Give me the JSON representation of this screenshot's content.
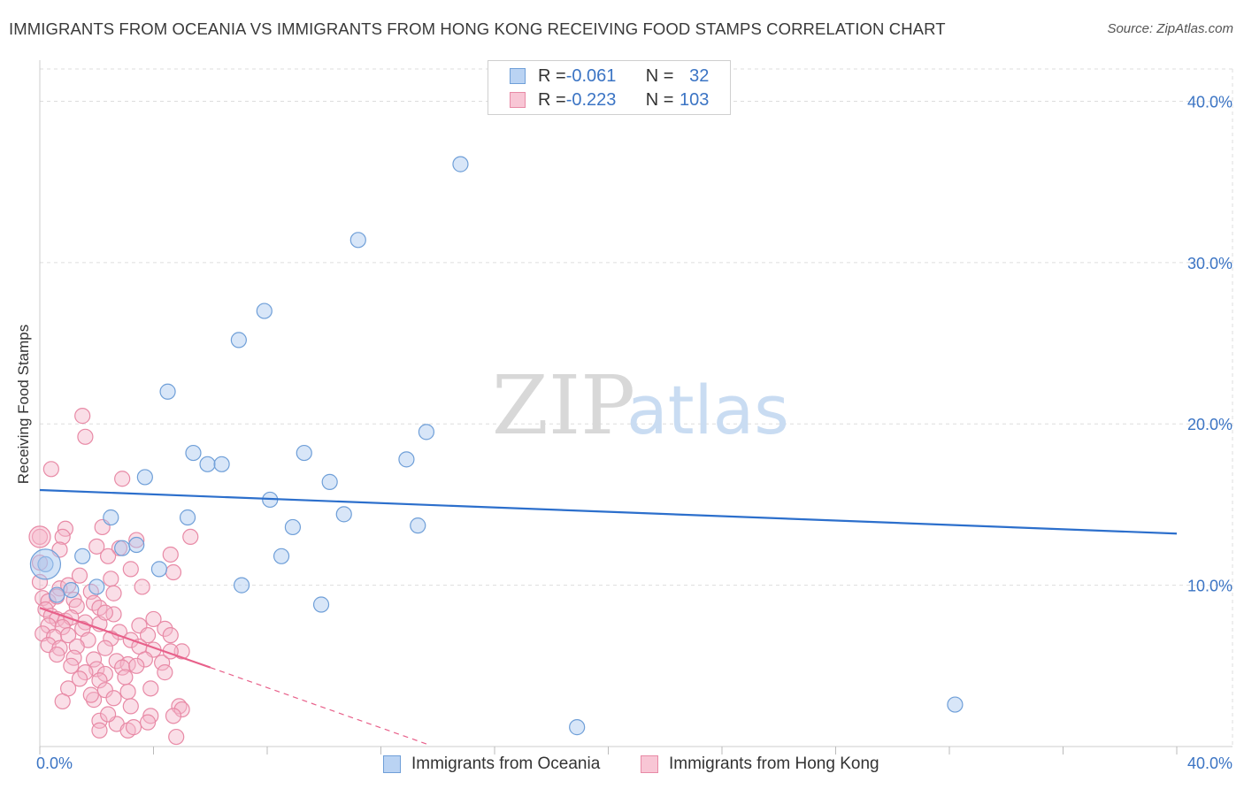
{
  "title": "IMMIGRANTS FROM OCEANIA VS IMMIGRANTS FROM HONG KONG RECEIVING FOOD STAMPS CORRELATION CHART",
  "source": "Source: ZipAtlas.com",
  "watermark": {
    "zip": "ZIP",
    "atlas": "atlas"
  },
  "legend": {
    "rows": [
      {
        "r_label": "R = ",
        "r_value": "-0.061",
        "n_label": "N = ",
        "n_value": "32"
      },
      {
        "r_label": "R = ",
        "r_value": "-0.223",
        "n_label": "N = ",
        "n_value": "103"
      }
    ]
  },
  "colors": {
    "blue_fill": "#a8c8f0",
    "blue_stroke": "#6f9fd8",
    "blue_line": "#2c6fcc",
    "pink_fill": "#f5b6c9",
    "pink_stroke": "#e88aa6",
    "pink_line": "#e8608a",
    "axis_text": "#3b74c4",
    "grid": "#dddddd"
  },
  "chart_data": {
    "type": "scatter",
    "title": "IMMIGRANTS FROM OCEANIA VS IMMIGRANTS FROM HONG KONG RECEIVING FOOD STAMPS CORRELATION CHART",
    "xlabel": "",
    "ylabel": "Receiving Food Stamps",
    "xlim": [
      0,
      40
    ],
    "ylim": [
      0,
      42
    ],
    "x_tick_labels": [
      {
        "value": 0,
        "label": "0.0%"
      },
      {
        "value": 40,
        "label": "40.0%"
      }
    ],
    "y_tick_labels": [
      {
        "value": 10,
        "label": "10.0%"
      },
      {
        "value": 20,
        "label": "20.0%"
      },
      {
        "value": 30,
        "label": "30.0%"
      },
      {
        "value": 40,
        "label": "40.0%"
      }
    ],
    "x_minor_ticks": [
      0,
      4,
      8,
      12,
      16,
      20,
      24,
      28,
      32,
      36,
      40
    ],
    "series": [
      {
        "name": "Immigrants from Oceania",
        "color": "blue",
        "R": -0.061,
        "N": 32,
        "trend": {
          "x": [
            0,
            40
          ],
          "y": [
            15.9,
            13.2
          ],
          "dashed_to": null
        },
        "points": [
          {
            "x": 14.8,
            "y": 36.1
          },
          {
            "x": 11.2,
            "y": 31.4
          },
          {
            "x": 7.9,
            "y": 27.0
          },
          {
            "x": 7.0,
            "y": 25.2
          },
          {
            "x": 4.5,
            "y": 22.0
          },
          {
            "x": 13.6,
            "y": 19.5
          },
          {
            "x": 5.4,
            "y": 18.2
          },
          {
            "x": 9.3,
            "y": 18.2
          },
          {
            "x": 12.9,
            "y": 17.8
          },
          {
            "x": 5.9,
            "y": 17.5
          },
          {
            "x": 6.4,
            "y": 17.5
          },
          {
            "x": 3.7,
            "y": 16.7
          },
          {
            "x": 10.2,
            "y": 16.4
          },
          {
            "x": 8.1,
            "y": 15.3
          },
          {
            "x": 10.7,
            "y": 14.4
          },
          {
            "x": 2.5,
            "y": 14.2
          },
          {
            "x": 5.2,
            "y": 14.2
          },
          {
            "x": 8.9,
            "y": 13.6
          },
          {
            "x": 13.3,
            "y": 13.7
          },
          {
            "x": 3.4,
            "y": 12.5
          },
          {
            "x": 2.9,
            "y": 12.3
          },
          {
            "x": 1.5,
            "y": 11.8
          },
          {
            "x": 8.5,
            "y": 11.8
          },
          {
            "x": 4.2,
            "y": 11.0
          },
          {
            "x": 0.2,
            "y": 11.3
          },
          {
            "x": 7.1,
            "y": 10.0
          },
          {
            "x": 2.0,
            "y": 9.9
          },
          {
            "x": 0.6,
            "y": 9.4
          },
          {
            "x": 1.1,
            "y": 9.7
          },
          {
            "x": 9.9,
            "y": 8.8
          },
          {
            "x": 32.2,
            "y": 2.6
          },
          {
            "x": 18.9,
            "y": 1.2
          }
        ]
      },
      {
        "name": "Immigrants from Hong Kong",
        "color": "pink",
        "R": -0.223,
        "N": 103,
        "trend": {
          "x": [
            0,
            6
          ],
          "y": [
            8.6,
            4.9
          ],
          "dashed_to": {
            "x": 13.7,
            "y": 0.1
          }
        },
        "points": [
          {
            "x": 1.5,
            "y": 20.5
          },
          {
            "x": 1.6,
            "y": 19.2
          },
          {
            "x": 0.4,
            "y": 17.2
          },
          {
            "x": 2.9,
            "y": 16.6
          },
          {
            "x": 0.0,
            "y": 13.0
          },
          {
            "x": 0.9,
            "y": 13.5
          },
          {
            "x": 0.8,
            "y": 13.0
          },
          {
            "x": 2.2,
            "y": 13.6
          },
          {
            "x": 3.4,
            "y": 12.8
          },
          {
            "x": 5.3,
            "y": 13.0
          },
          {
            "x": 2.0,
            "y": 12.4
          },
          {
            "x": 2.8,
            "y": 12.3
          },
          {
            "x": 4.6,
            "y": 11.9
          },
          {
            "x": 2.4,
            "y": 11.8
          },
          {
            "x": 0.0,
            "y": 11.4
          },
          {
            "x": 1.4,
            "y": 10.6
          },
          {
            "x": 4.7,
            "y": 10.8
          },
          {
            "x": 2.5,
            "y": 10.4
          },
          {
            "x": 0.0,
            "y": 10.2
          },
          {
            "x": 0.7,
            "y": 9.8
          },
          {
            "x": 1.0,
            "y": 10.0
          },
          {
            "x": 1.8,
            "y": 9.6
          },
          {
            "x": 2.6,
            "y": 9.5
          },
          {
            "x": 0.1,
            "y": 9.2
          },
          {
            "x": 0.3,
            "y": 9.0
          },
          {
            "x": 0.6,
            "y": 9.3
          },
          {
            "x": 1.2,
            "y": 9.1
          },
          {
            "x": 1.9,
            "y": 8.9
          },
          {
            "x": 0.2,
            "y": 8.5
          },
          {
            "x": 1.3,
            "y": 8.7
          },
          {
            "x": 2.1,
            "y": 8.6
          },
          {
            "x": 2.6,
            "y": 8.2
          },
          {
            "x": 0.4,
            "y": 8.1
          },
          {
            "x": 0.6,
            "y": 7.9
          },
          {
            "x": 0.9,
            "y": 7.8
          },
          {
            "x": 1.1,
            "y": 8.0
          },
          {
            "x": 1.6,
            "y": 7.7
          },
          {
            "x": 2.1,
            "y": 7.6
          },
          {
            "x": 0.3,
            "y": 7.5
          },
          {
            "x": 0.8,
            "y": 7.4
          },
          {
            "x": 1.5,
            "y": 7.3
          },
          {
            "x": 2.8,
            "y": 7.1
          },
          {
            "x": 3.5,
            "y": 7.5
          },
          {
            "x": 4.0,
            "y": 7.9
          },
          {
            "x": 4.4,
            "y": 7.3
          },
          {
            "x": 0.1,
            "y": 7.0
          },
          {
            "x": 0.5,
            "y": 6.8
          },
          {
            "x": 1.0,
            "y": 6.9
          },
          {
            "x": 1.7,
            "y": 6.6
          },
          {
            "x": 2.5,
            "y": 6.7
          },
          {
            "x": 3.2,
            "y": 6.6
          },
          {
            "x": 3.8,
            "y": 6.9
          },
          {
            "x": 4.6,
            "y": 6.9
          },
          {
            "x": 0.3,
            "y": 6.3
          },
          {
            "x": 0.7,
            "y": 6.1
          },
          {
            "x": 1.3,
            "y": 6.2
          },
          {
            "x": 2.3,
            "y": 6.1
          },
          {
            "x": 3.5,
            "y": 6.2
          },
          {
            "x": 4.0,
            "y": 6.0
          },
          {
            "x": 5.0,
            "y": 5.9
          },
          {
            "x": 0.6,
            "y": 5.7
          },
          {
            "x": 1.2,
            "y": 5.5
          },
          {
            "x": 1.9,
            "y": 5.4
          },
          {
            "x": 2.7,
            "y": 5.3
          },
          {
            "x": 3.1,
            "y": 5.1
          },
          {
            "x": 3.7,
            "y": 5.4
          },
          {
            "x": 4.3,
            "y": 5.2
          },
          {
            "x": 1.1,
            "y": 5.0
          },
          {
            "x": 2.0,
            "y": 4.8
          },
          {
            "x": 2.9,
            "y": 4.9
          },
          {
            "x": 3.4,
            "y": 5.0
          },
          {
            "x": 4.4,
            "y": 4.6
          },
          {
            "x": 1.6,
            "y": 4.6
          },
          {
            "x": 2.3,
            "y": 4.5
          },
          {
            "x": 1.4,
            "y": 4.2
          },
          {
            "x": 2.1,
            "y": 4.1
          },
          {
            "x": 3.0,
            "y": 4.3
          },
          {
            "x": 3.9,
            "y": 3.6
          },
          {
            "x": 1.0,
            "y": 3.6
          },
          {
            "x": 2.3,
            "y": 3.5
          },
          {
            "x": 1.9,
            "y": 2.9
          },
          {
            "x": 0.8,
            "y": 2.8
          },
          {
            "x": 2.6,
            "y": 3.0
          },
          {
            "x": 3.1,
            "y": 3.4
          },
          {
            "x": 1.8,
            "y": 3.2
          },
          {
            "x": 3.2,
            "y": 2.5
          },
          {
            "x": 4.9,
            "y": 2.5
          },
          {
            "x": 5.0,
            "y": 2.3
          },
          {
            "x": 2.1,
            "y": 1.6
          },
          {
            "x": 3.9,
            "y": 1.9
          },
          {
            "x": 2.1,
            "y": 1.0
          },
          {
            "x": 2.7,
            "y": 1.4
          },
          {
            "x": 3.1,
            "y": 1.0
          },
          {
            "x": 3.3,
            "y": 1.2
          },
          {
            "x": 3.8,
            "y": 1.5
          },
          {
            "x": 4.7,
            "y": 1.9
          },
          {
            "x": 4.8,
            "y": 0.6
          },
          {
            "x": 2.4,
            "y": 2.0
          },
          {
            "x": 4.6,
            "y": 5.9
          },
          {
            "x": 3.2,
            "y": 11.0
          },
          {
            "x": 3.6,
            "y": 9.9
          },
          {
            "x": 2.3,
            "y": 8.3
          },
          {
            "x": 0.7,
            "y": 12.2
          }
        ]
      }
    ]
  },
  "bottom_legend": [
    {
      "label": "Immigrants from Oceania",
      "color": "blue"
    },
    {
      "label": "Immigrants from Hong Kong",
      "color": "pink"
    }
  ]
}
